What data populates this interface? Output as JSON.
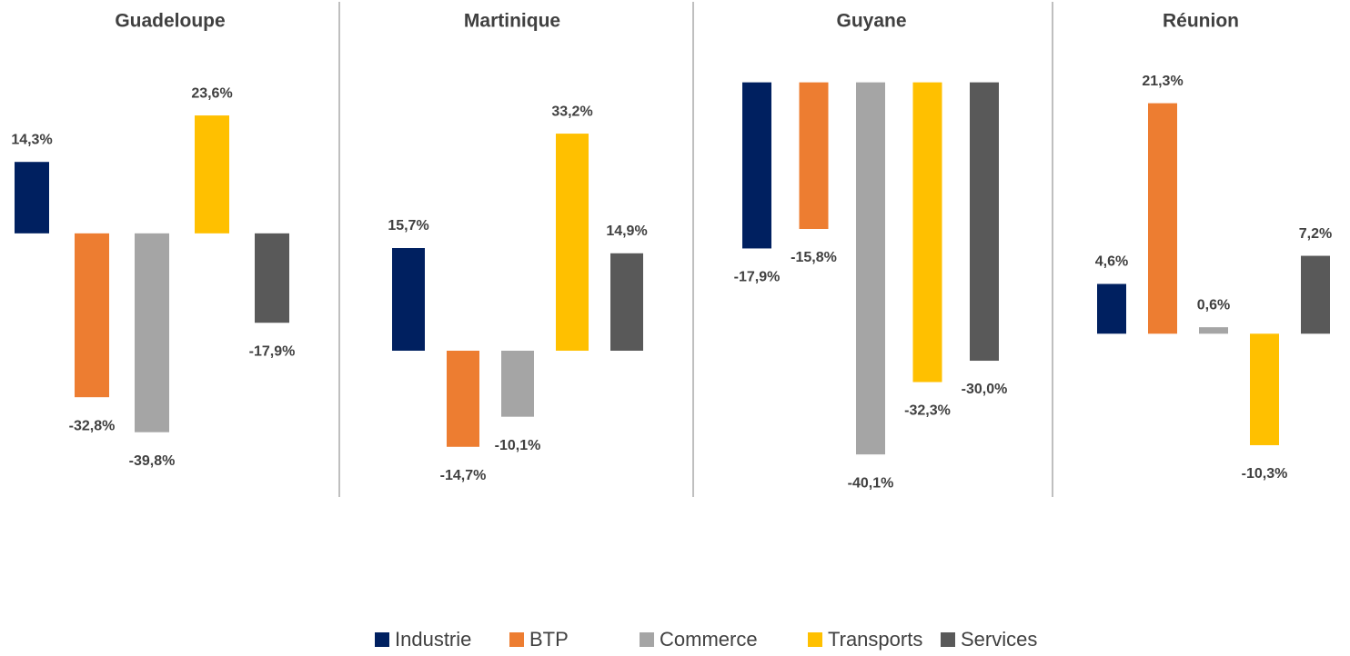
{
  "chart_data": [
    {
      "type": "bar",
      "title": "Guadeloupe",
      "values": [
        14.3,
        -32.8,
        -39.8,
        23.6,
        -17.9
      ],
      "value_labels": [
        "14,3%",
        "-32,8%",
        "-39,8%",
        "23,6%",
        "-17,9%"
      ],
      "ylim": [
        -51.5,
        35.8
      ]
    },
    {
      "type": "bar",
      "title": "Martinique",
      "values": [
        15.7,
        -14.7,
        -10.1,
        33.2,
        14.9
      ],
      "value_labels": [
        "15,7%",
        "-14,7%",
        "-10,1%",
        "33,2%",
        "14,9%"
      ],
      "ylim": [
        -21.4,
        45.3
      ]
    },
    {
      "type": "bar",
      "title": "Guyane",
      "values": [
        -17.9,
        -15.8,
        -40.1,
        -32.3,
        -30.0
      ],
      "value_labels": [
        "-17,9%",
        "-15,8%",
        "-40,1%",
        "-32,3%",
        "-30,0%"
      ],
      "ylim": [
        -44.0,
        3.0
      ]
    },
    {
      "type": "bar",
      "title": "Réunion",
      "values": [
        4.6,
        21.3,
        0.6,
        -10.3,
        7.2
      ],
      "value_labels": [
        "4,6%",
        "21,3%",
        "0,6%",
        "-10,3%",
        "7,2%"
      ],
      "ylim": [
        -14.5,
        25.8
      ]
    }
  ],
  "legend": {
    "categories": [
      "Industrie",
      "BTP",
      "Commerce",
      "Transports",
      "Services"
    ],
    "colors": [
      "#002060",
      "#ed7d31",
      "#a5a5a5",
      "#ffc000",
      "#595959"
    ]
  }
}
